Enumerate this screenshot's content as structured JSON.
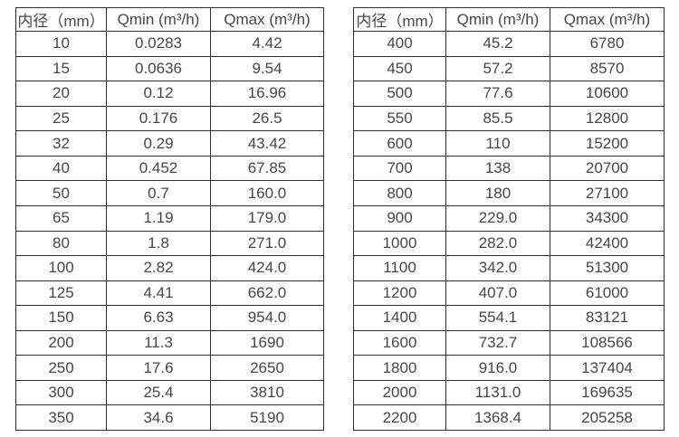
{
  "page": {
    "background_color": "#ffffff",
    "text_color": "#474747",
    "border_color": "#303030"
  },
  "tables": [
    {
      "name": "small-diameter-flow-table",
      "headers": [
        "内径（mm）",
        "Qmin (m³/h)",
        "Qmax (m³/h)"
      ],
      "rows": [
        [
          "10",
          "0.0283",
          "4.42"
        ],
        [
          "15",
          "0.0636",
          "9.54"
        ],
        [
          "20",
          "0.12",
          "16.96"
        ],
        [
          "25",
          "0.176",
          "26.5"
        ],
        [
          "32",
          "0.29",
          "43.42"
        ],
        [
          "40",
          "0.452",
          "67.85"
        ],
        [
          "50",
          "0.7",
          "160.0"
        ],
        [
          "65",
          "1.19",
          "179.0"
        ],
        [
          "80",
          "1.8",
          "271.0"
        ],
        [
          "100",
          "2.82",
          "424.0"
        ],
        [
          "125",
          "4.41",
          "662.0"
        ],
        [
          "150",
          "6.63",
          "954.0"
        ],
        [
          "200",
          "11.3",
          "1690"
        ],
        [
          "250",
          "17.6",
          "2650"
        ],
        [
          "300",
          "25.4",
          "3810"
        ],
        [
          "350",
          "34.6",
          "5190"
        ]
      ]
    },
    {
      "name": "large-diameter-flow-table",
      "headers": [
        "内径（mm）",
        "Qmin (m³/h)",
        "Qmax (m³/h)"
      ],
      "rows": [
        [
          "400",
          "45.2",
          "6780"
        ],
        [
          "450",
          "57.2",
          "8570"
        ],
        [
          "500",
          "77.6",
          "10600"
        ],
        [
          "550",
          "85.5",
          "12800"
        ],
        [
          "600",
          "110",
          "15200"
        ],
        [
          "700",
          "138",
          "20700"
        ],
        [
          "800",
          "180",
          "27100"
        ],
        [
          "900",
          "229.0",
          "34300"
        ],
        [
          "1000",
          "282.0",
          "42400"
        ],
        [
          "1100",
          "342.0",
          "51300"
        ],
        [
          "1200",
          "407.0",
          "61000"
        ],
        [
          "1400",
          "554.1",
          "83121"
        ],
        [
          "1600",
          "732.7",
          "108566"
        ],
        [
          "1800",
          "916.0",
          "137404"
        ],
        [
          "2000",
          "1131.0",
          "169635"
        ],
        [
          "2200",
          "1368.4",
          "205258"
        ]
      ]
    }
  ]
}
